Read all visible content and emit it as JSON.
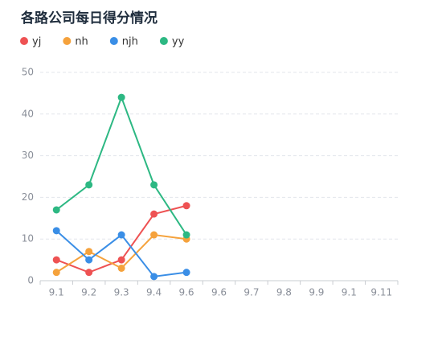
{
  "chart_data": {
    "type": "line",
    "title": "各路公司每日得分情况",
    "categories": [
      "9.1",
      "9.2",
      "9.3",
      "9.4",
      "9.6",
      "9.6",
      "9.7",
      "9.8",
      "9.9",
      "9.1",
      "9.11"
    ],
    "series": [
      {
        "name": "yj",
        "color": "#ee5253",
        "values": [
          5,
          2,
          5,
          16,
          18,
          null,
          null,
          null,
          null,
          null,
          null
        ]
      },
      {
        "name": "nh",
        "color": "#f5a23c",
        "values": [
          2,
          7,
          3,
          11,
          10,
          null,
          null,
          null,
          null,
          null,
          null
        ]
      },
      {
        "name": "njh",
        "color": "#3a8ee6",
        "values": [
          12,
          5,
          11,
          1,
          2,
          null,
          null,
          null,
          null,
          null,
          null
        ]
      },
      {
        "name": "yy",
        "color": "#2db883",
        "values": [
          17,
          23,
          44,
          23,
          11,
          null,
          null,
          null,
          null,
          null,
          null
        ]
      }
    ],
    "ylim": [
      0,
      50
    ],
    "yticks": [
      0,
      10,
      20,
      30,
      40,
      50
    ],
    "grid": true,
    "legend": "top-left"
  }
}
